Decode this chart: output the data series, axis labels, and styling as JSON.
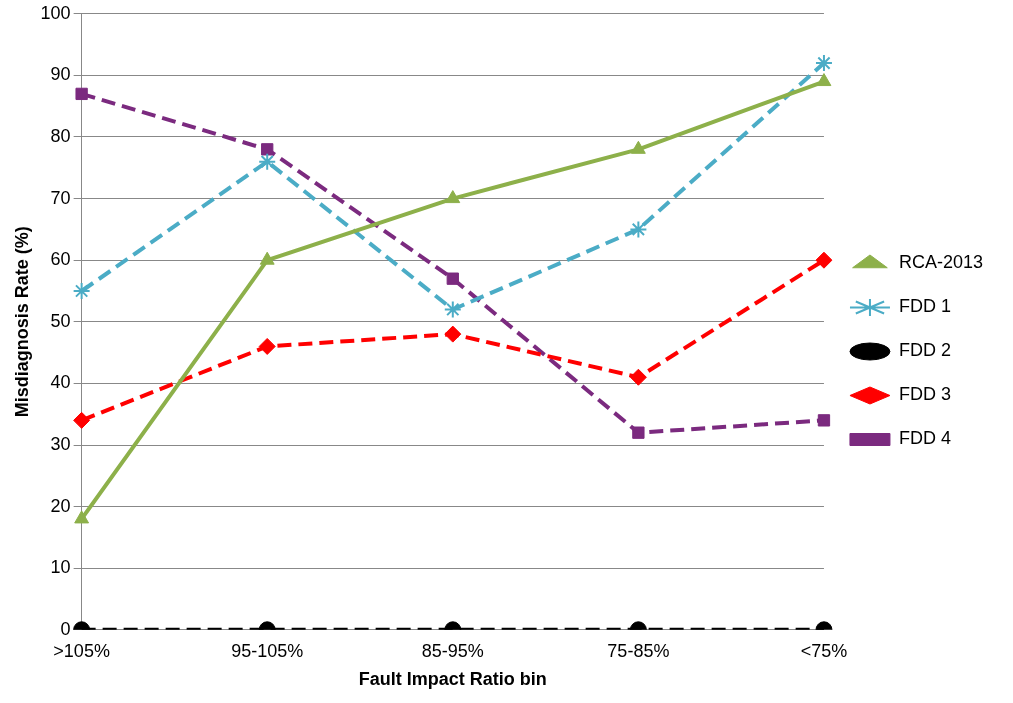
{
  "chart_data": {
    "type": "line",
    "xlabel": "Fault Impact Ratio bin",
    "ylabel": "Misdiagnosis Rate (%)",
    "categories": [
      ">105%",
      "95-105%",
      "85-95%",
      "75-85%",
      "<75%"
    ],
    "ylim": [
      0,
      100
    ],
    "yticks": [
      0,
      10,
      20,
      30,
      40,
      50,
      60,
      70,
      80,
      90,
      100
    ],
    "grid": "y",
    "legend": "right",
    "series": [
      {
        "name": "RCA-2013",
        "color": "#8db04a",
        "marker": "triangle",
        "line_style": "solid",
        "values": [
          18,
          60,
          70,
          78,
          89
        ]
      },
      {
        "name": "FDD 1",
        "color": "#4bacc6",
        "marker": "cross",
        "line_style": "dashed",
        "values": [
          55,
          76,
          52,
          65,
          92
        ]
      },
      {
        "name": "FDD 2",
        "color": "#000000",
        "marker": "circle",
        "line_style": "dashed",
        "values": [
          0,
          0,
          0,
          0,
          0
        ]
      },
      {
        "name": "FDD 3",
        "color": "#ff0000",
        "marker": "diamond",
        "line_style": "dashed",
        "values": [
          34,
          46,
          48,
          41,
          60
        ]
      },
      {
        "name": "FDD 4",
        "color": "#7b2a7f",
        "marker": "square",
        "line_style": "dashed",
        "values": [
          87,
          78,
          57,
          32,
          34
        ]
      }
    ]
  }
}
